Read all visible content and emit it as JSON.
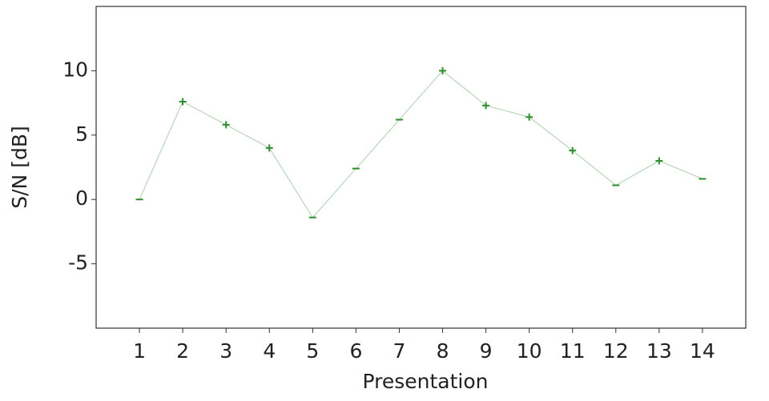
{
  "chart_data": {
    "type": "line",
    "xlabel": "Presentation",
    "ylabel": "S/N [dB]",
    "x": [
      1,
      2,
      3,
      4,
      5,
      6,
      7,
      8,
      9,
      10,
      11,
      12,
      13,
      14
    ],
    "values": [
      0,
      7.6,
      5.8,
      4.0,
      -1.4,
      2.4,
      6.2,
      10,
      7.3,
      6.4,
      3.8,
      1.1,
      3.0,
      1.6
    ],
    "markers": [
      "minus",
      "plus",
      "plus",
      "plus",
      "minus",
      "minus",
      "minus",
      "plus",
      "plus",
      "plus",
      "plus",
      "minus",
      "plus",
      "minus"
    ],
    "line_color": "#b9d6b9",
    "marker_color": "#2f8f2f",
    "xlim": [
      0,
      15
    ],
    "ylim": [
      -10,
      15
    ],
    "xticks": [
      1,
      2,
      3,
      4,
      5,
      6,
      7,
      8,
      9,
      10,
      11,
      12,
      13,
      14
    ],
    "yticks": [
      -5,
      0,
      5,
      10
    ],
    "grid": false
  }
}
